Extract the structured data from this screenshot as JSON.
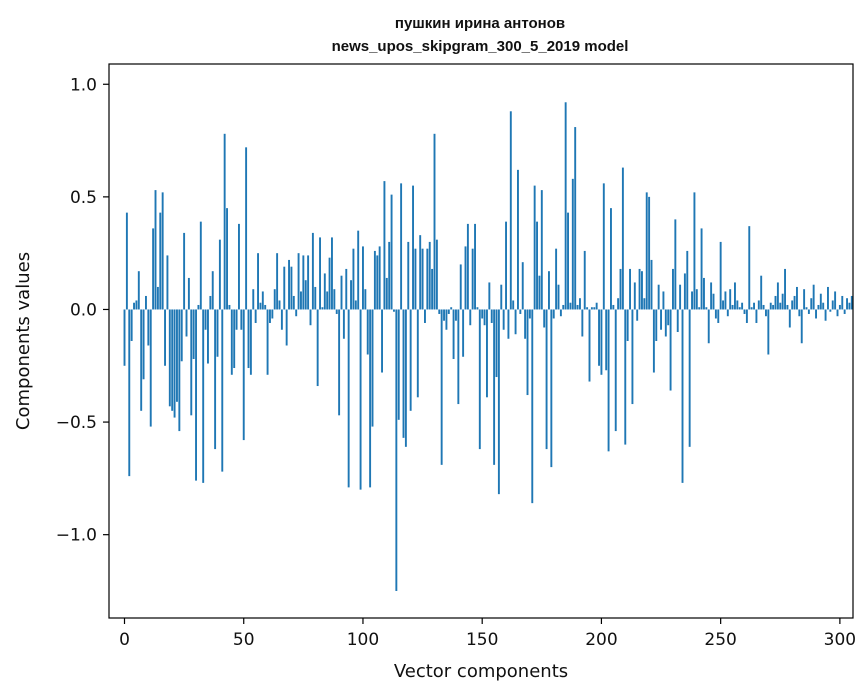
{
  "chart_data": {
    "type": "bar",
    "title": [
      "пушкин ирина антонов",
      "news_upos_skipgram_300_5_2019 model"
    ],
    "xlabel": "Vector components",
    "ylabel": "Components values",
    "xlim": [
      -6.5,
      305.5
    ],
    "ylim": [
      -1.37,
      1.09
    ],
    "xticks": [
      0,
      50,
      100,
      150,
      200,
      250,
      300
    ],
    "xtick_labels": [
      "0",
      "50",
      "100",
      "150",
      "200",
      "250",
      "300"
    ],
    "yticks": [
      1.0,
      0.5,
      0.0,
      -0.5,
      -1.0
    ],
    "ytick_labels": [
      "1.0",
      "0.5",
      "0.0",
      "−0.5",
      "−1.0"
    ],
    "bar_color": "#1f77b4",
    "values": [
      -0.25,
      0.43,
      -0.74,
      -0.14,
      0.03,
      0.04,
      0.17,
      -0.45,
      -0.31,
      0.06,
      -0.16,
      -0.52,
      0.36,
      0.53,
      0.1,
      0.43,
      0.52,
      -0.25,
      0.24,
      -0.43,
      -0.45,
      -0.48,
      -0.41,
      -0.54,
      -0.23,
      0.34,
      -0.12,
      0.14,
      -0.47,
      -0.22,
      -0.76,
      0.02,
      0.39,
      -0.77,
      -0.09,
      -0.24,
      0.06,
      0.17,
      -0.62,
      -0.21,
      0.31,
      -0.72,
      0.78,
      0.45,
      0.02,
      -0.29,
      -0.26,
      -0.09,
      0.38,
      -0.09,
      -0.58,
      0.72,
      -0.26,
      -0.29,
      0.09,
      -0.06,
      0.25,
      0.03,
      0.08,
      0.02,
      -0.29,
      -0.06,
      -0.04,
      0.09,
      0.25,
      0.04,
      -0.09,
      0.19,
      -0.16,
      0.22,
      0.19,
      0.06,
      -0.03,
      0.25,
      0.08,
      0.24,
      0.13,
      0.24,
      -0.07,
      0.34,
      0.1,
      -0.34,
      0.32,
      0.01,
      0.16,
      0.08,
      0.23,
      0.32,
      0.09,
      -0.02,
      -0.47,
      0.15,
      -0.13,
      0.18,
      -0.79,
      0.13,
      0.27,
      0.04,
      0.35,
      -0.8,
      0.28,
      0.09,
      -0.2,
      -0.79,
      -0.52,
      0.26,
      0.24,
      0.28,
      -0.28,
      0.57,
      0.14,
      0.3,
      0.51,
      -0.01,
      -1.25,
      -0.49,
      0.56,
      -0.57,
      -0.61,
      0.3,
      -0.45,
      0.55,
      0.27,
      -0.39,
      0.33,
      0.27,
      -0.06,
      0.27,
      0.3,
      0.18,
      0.78,
      0.31,
      -0.02,
      -0.69,
      -0.05,
      -0.09,
      -0.02,
      0.01,
      -0.22,
      -0.05,
      -0.42,
      0.2,
      -0.21,
      0.28,
      0.38,
      -0.07,
      0.27,
      0.38,
      0.01,
      -0.62,
      -0.04,
      -0.07,
      -0.39,
      0.12,
      -0.06,
      -0.69,
      -0.3,
      -0.82,
      0.11,
      -0.09,
      0.39,
      -0.13,
      0.88,
      0.04,
      -0.11,
      0.62,
      -0.02,
      0.21,
      -0.13,
      -0.38,
      -0.04,
      -0.86,
      0.55,
      0.39,
      0.15,
      0.53,
      -0.08,
      -0.62,
      0.17,
      -0.7,
      -0.04,
      0.27,
      0.11,
      -0.03,
      0.02,
      0.92,
      0.43,
      0.03,
      0.58,
      0.81,
      0.02,
      0.05,
      -0.12,
      0.26,
      0.01,
      -0.32,
      0.01,
      0.01,
      0.03,
      -0.25,
      -0.29,
      0.56,
      -0.27,
      -0.63,
      0.45,
      0.02,
      -0.54,
      0.05,
      0.18,
      0.63,
      -0.6,
      -0.14,
      0.18,
      -0.42,
      0.12,
      -0.05,
      0.18,
      0.17,
      0.05,
      0.52,
      0.5,
      0.22,
      -0.28,
      -0.14,
      0.11,
      -0.09,
      0.08,
      -0.12,
      -0.07,
      -0.36,
      0.18,
      0.4,
      -0.1,
      0.11,
      -0.77,
      0.16,
      0.26,
      -0.61,
      0.08,
      0.52,
      0.09,
      0.01,
      0.36,
      0.14,
      0.01,
      -0.15,
      0.12,
      0.07,
      -0.04,
      -0.06,
      0.3,
      0.04,
      0.08,
      -0.03,
      0.09,
      0.02,
      0.12,
      0.04,
      0.01,
      0.03,
      -0.02,
      -0.06,
      0.37,
      0.01,
      0.03,
      -0.06,
      0.04,
      0.15,
      0.02,
      -0.03,
      -0.2,
      0.03,
      0.02,
      0.06,
      0.12,
      0.03,
      0.07,
      0.18,
      0.02,
      -0.08,
      0.04,
      0.06,
      0.1,
      -0.03,
      -0.15,
      0.09,
      0.01,
      -0.02,
      0.05,
      0.11,
      -0.04,
      0.02,
      0.07,
      0.03,
      -0.05,
      0.1,
      -0.01,
      0.04,
      0.08,
      -0.03,
      0.02,
      0.06,
      -0.02,
      0.05,
      0.03,
      0.06
    ]
  }
}
